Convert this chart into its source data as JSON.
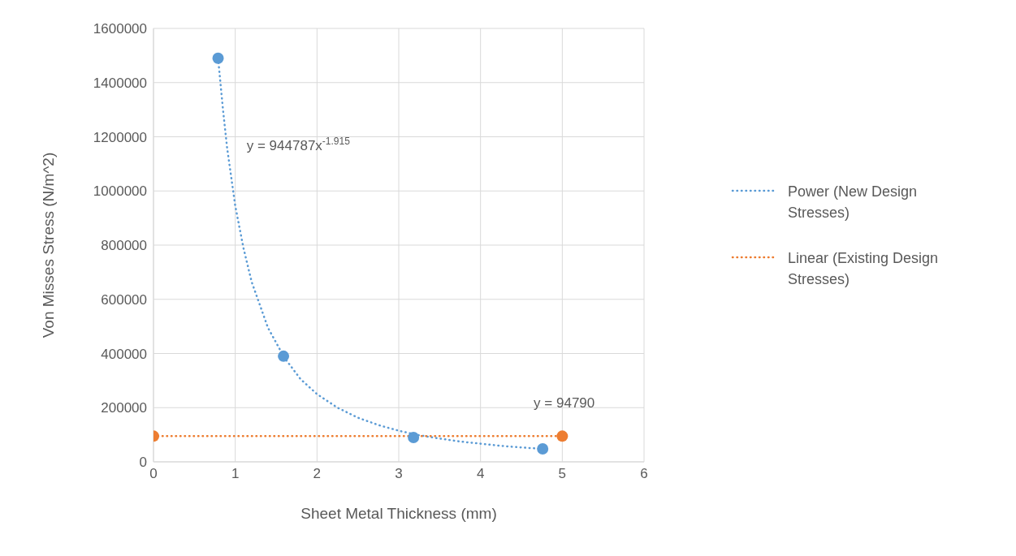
{
  "chart_data": {
    "type": "scatter",
    "xlabel": "Sheet Metal Thickness (mm)",
    "ylabel": "Von Misses Stress (N/m^2)",
    "xlim": [
      0,
      6
    ],
    "xticks": [
      0,
      1,
      2,
      3,
      4,
      5,
      6
    ],
    "ylim": [
      0,
      1600000
    ],
    "yticks": [
      0,
      200000,
      400000,
      600000,
      800000,
      1000000,
      1200000,
      1400000,
      1600000
    ],
    "grid": true,
    "legend": "right",
    "series": [
      {
        "marker": "circle",
        "color": "#5b9bd5",
        "x": [
          0.79,
          1.59,
          3.18,
          4.76
        ],
        "values": [
          1490000,
          390000,
          90000,
          48000
        ]
      },
      {
        "marker": "circle",
        "color": "#ed7d31",
        "x": [
          0,
          5
        ],
        "values": [
          94790,
          94790
        ]
      },
      {
        "type": "line",
        "name": "Power (New Design Stresses)",
        "marker": "none",
        "line_style": "dotted",
        "color": "#5b9bd5",
        "x": [
          0.79,
          0.85,
          0.9,
          1,
          1.1,
          1.2,
          1.4,
          1.6,
          1.8,
          2,
          2.25,
          2.5,
          2.75,
          3,
          3.25,
          3.5,
          3.75,
          4,
          4.25,
          4.5,
          4.76
        ],
        "values": [
          1490000,
          1300000,
          1160000,
          945000,
          790000,
          665000,
          495000,
          385000,
          305000,
          250000,
          200000,
          163000,
          136000,
          115000,
          98000,
          86000,
          75000,
          67000,
          59000,
          53000,
          48000
        ]
      },
      {
        "type": "line",
        "name": "Linear (Existing Design Stresses)",
        "marker": "none",
        "line_style": "dotted",
        "color": "#ed7d31",
        "x": [
          0,
          5
        ],
        "values": [
          94790,
          94790
        ]
      }
    ],
    "annotations": [
      "y = 944787x$^{-1.915}$",
      "y = 94790"
    ]
  }
}
